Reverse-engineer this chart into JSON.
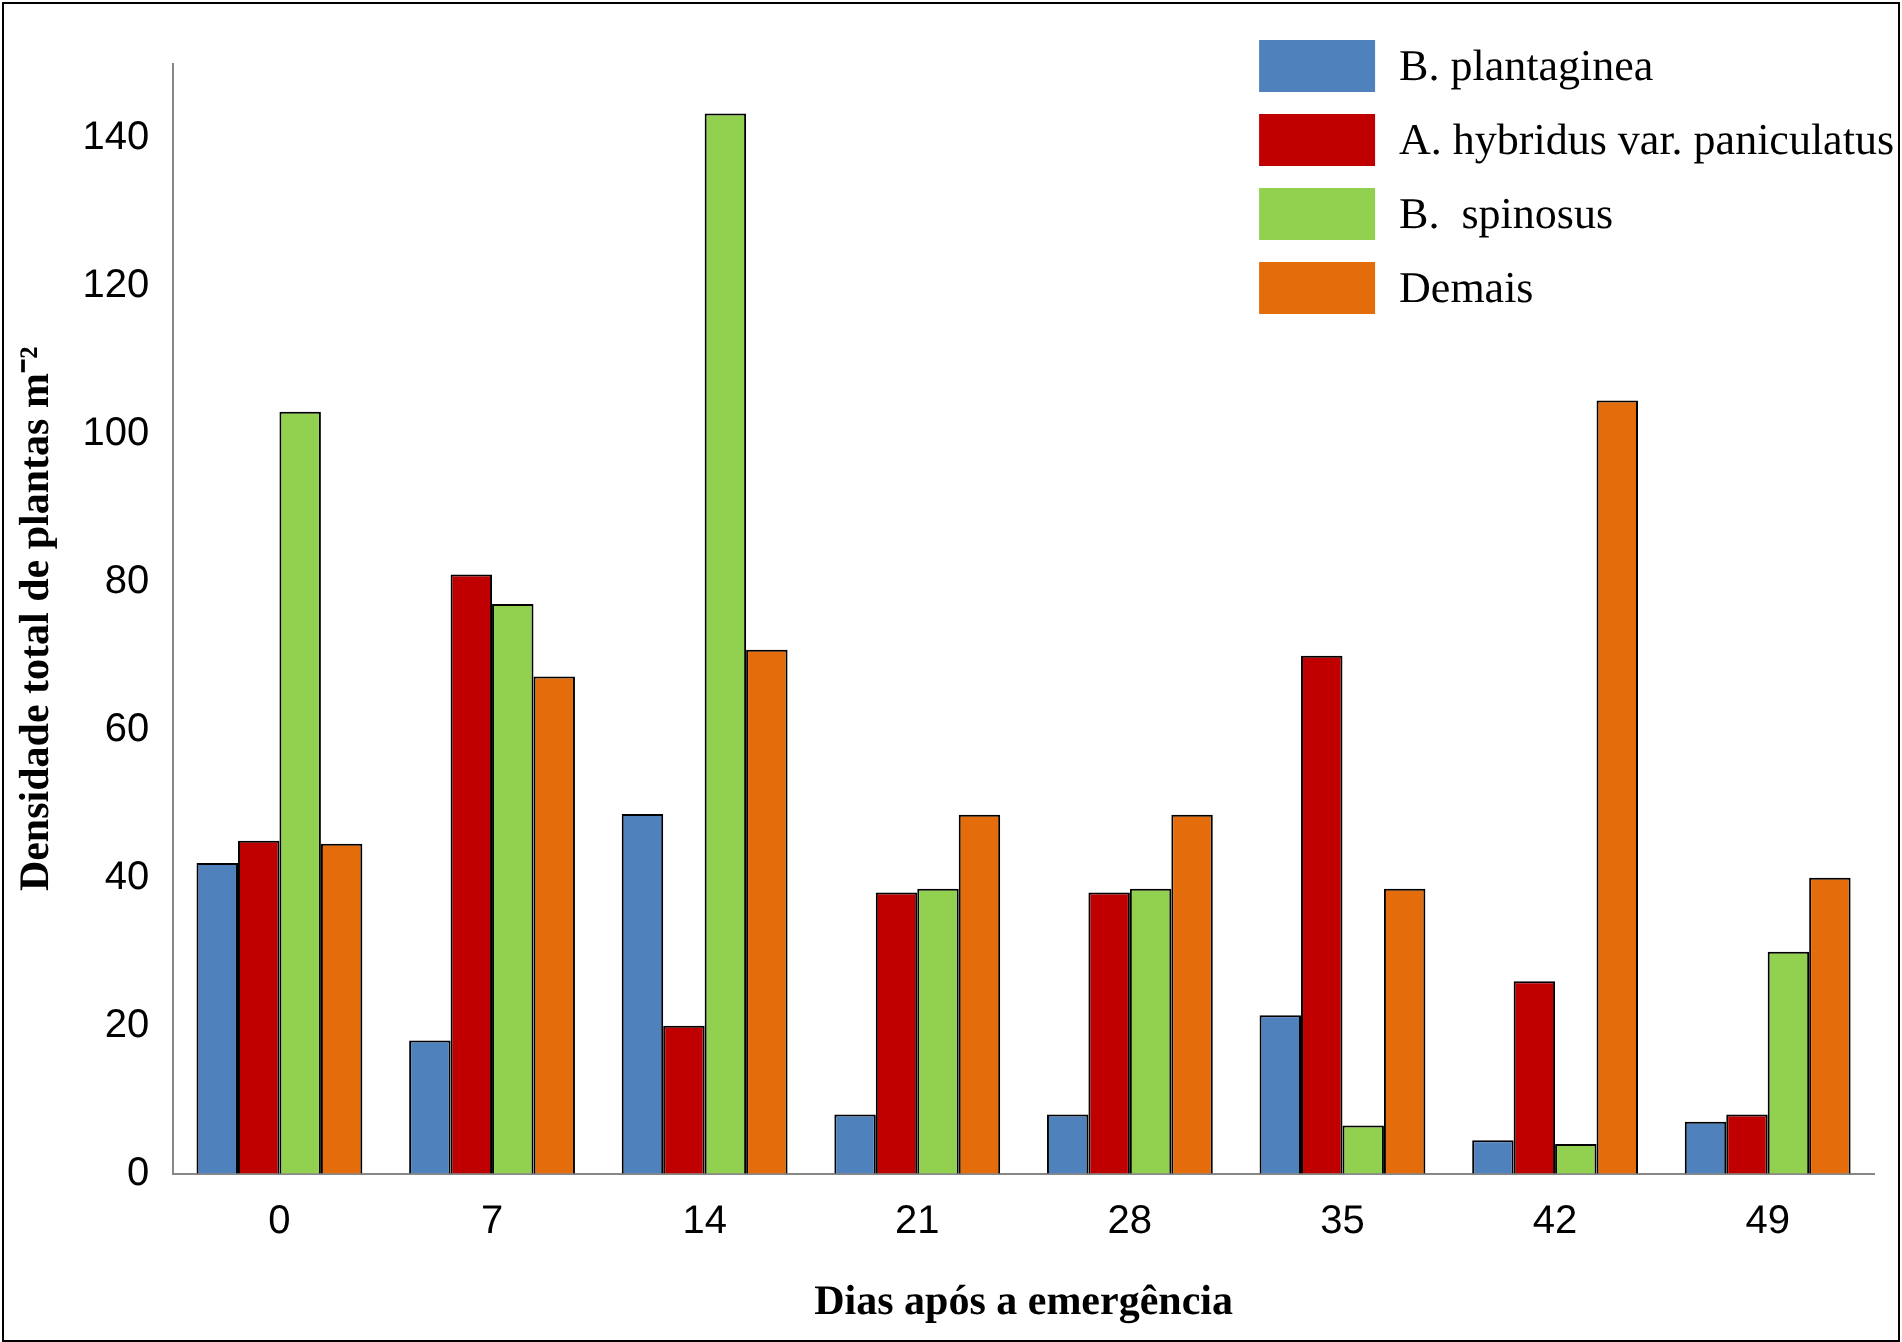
{
  "chart_data": {
    "type": "bar",
    "xlabel": "Dias após a emergência",
    "ylabel": "Densidade total de plantas m⁻²",
    "categories": [
      "0",
      "7",
      "14",
      "21",
      "28",
      "35",
      "42",
      "49"
    ],
    "series": [
      {
        "name": "B. plantaginea",
        "color": "#4f81bd",
        "values": [
          42,
          18,
          48.6,
          8,
          8,
          21.4,
          4.5,
          7
        ]
      },
      {
        "name": "A. hybridus var. paniculatus",
        "color": "#c00000",
        "values": [
          45,
          81,
          20,
          38,
          38,
          70,
          26,
          8
        ]
      },
      {
        "name": "B.  spinosus",
        "color": "#92d050",
        "values": [
          103,
          77,
          143.3,
          38.5,
          38.5,
          6.5,
          4,
          30
        ]
      },
      {
        "name": "Demais",
        "color": "#e46c0a",
        "values": [
          44.6,
          67.2,
          70.8,
          48.5,
          48.5,
          38.5,
          104.5,
          40
        ]
      }
    ],
    "ylim": [
      0,
      150
    ],
    "yticks": [
      0,
      20,
      40,
      60,
      80,
      100,
      120,
      140
    ],
    "grid": false,
    "legend": "top right"
  }
}
